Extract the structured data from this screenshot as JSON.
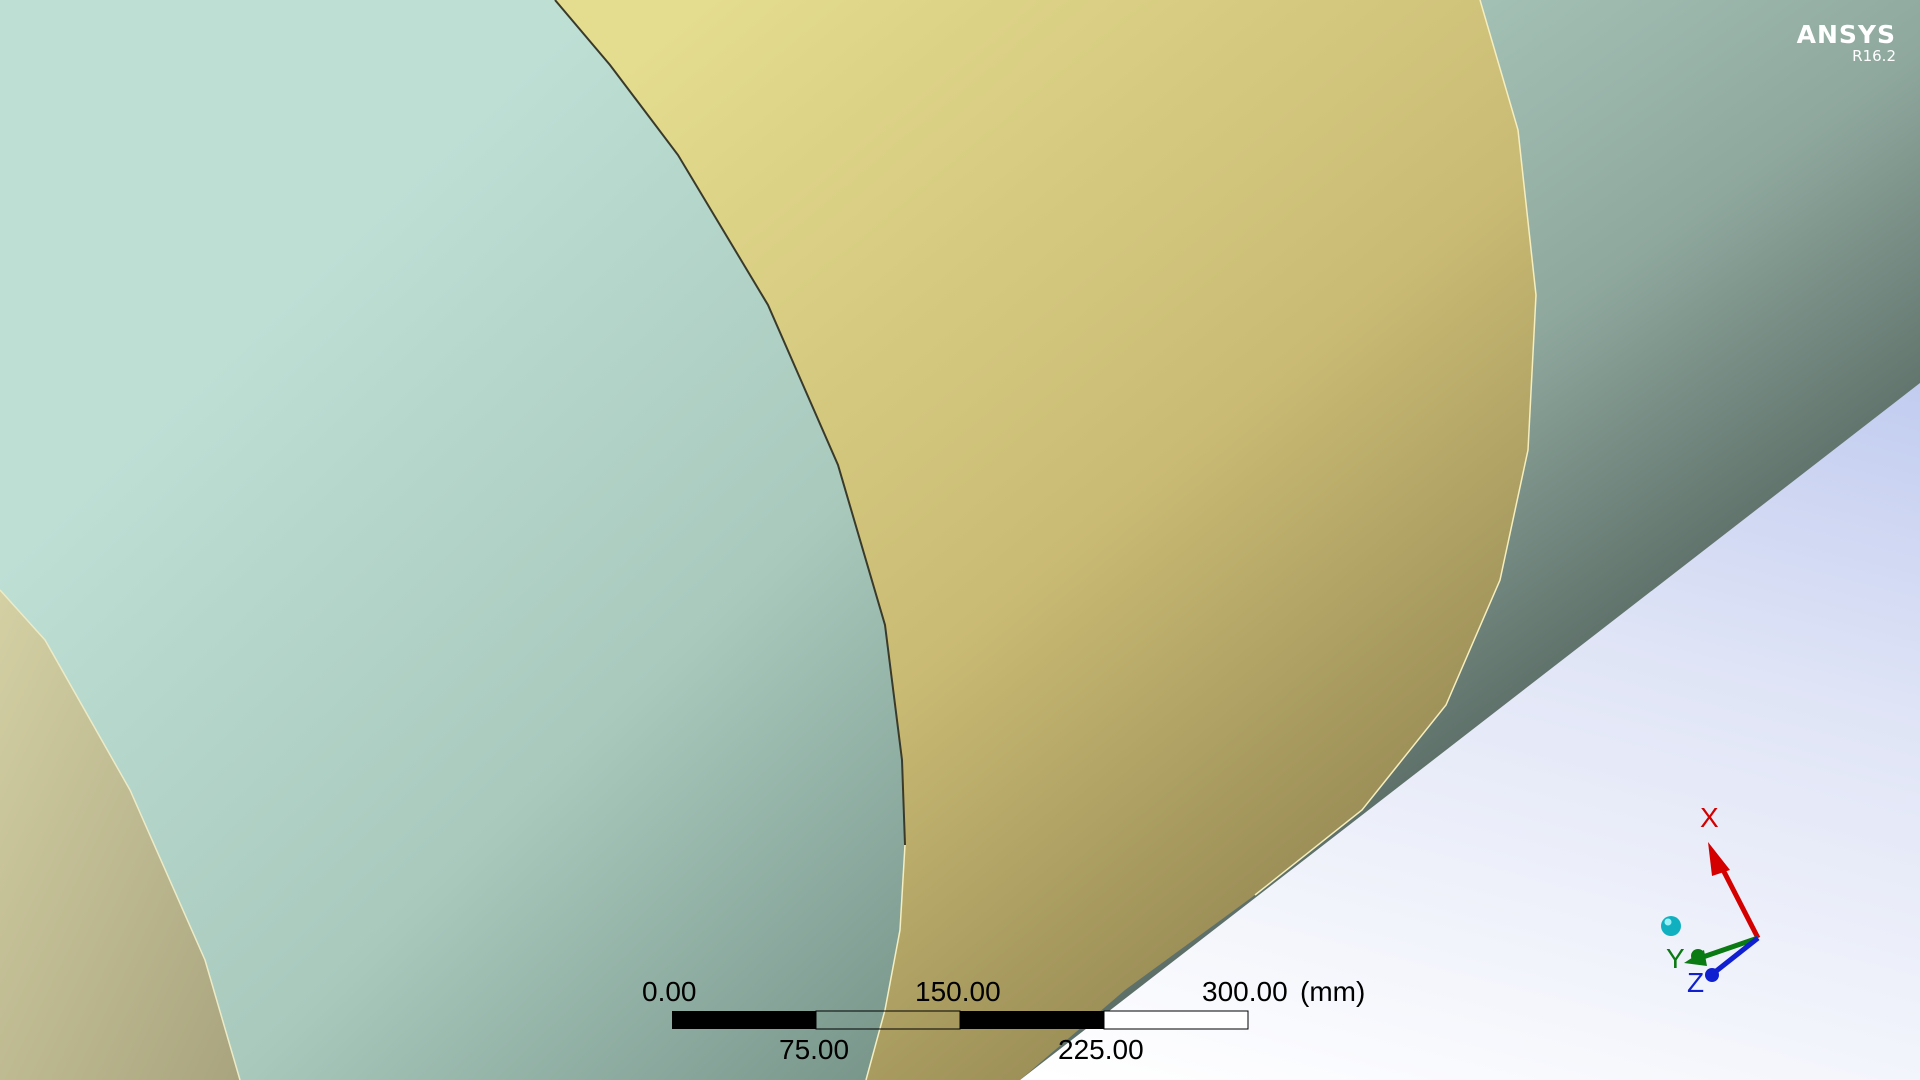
{
  "branding": {
    "product": "ANSYS",
    "release": "R16.2"
  },
  "scale_bar": {
    "unit": "(mm)",
    "top_ticks": [
      "0.00",
      "150.00",
      "300.00"
    ],
    "bottom_ticks": [
      "75.00",
      "225.00"
    ]
  },
  "triad": {
    "x_label": "X",
    "y_label": "Y",
    "z_label": "Z",
    "colors": {
      "x": "#d40000",
      "y": "#0a7a12",
      "z": "#1020d0",
      "iso_ball": "#10b0c0"
    }
  },
  "colors": {
    "background_top": "#9fb0e8",
    "background_bottom": "#ffffff",
    "body_green": "#bddfd4",
    "body_yellow": "#e4dc8e",
    "edge": "#3a3a2a"
  }
}
